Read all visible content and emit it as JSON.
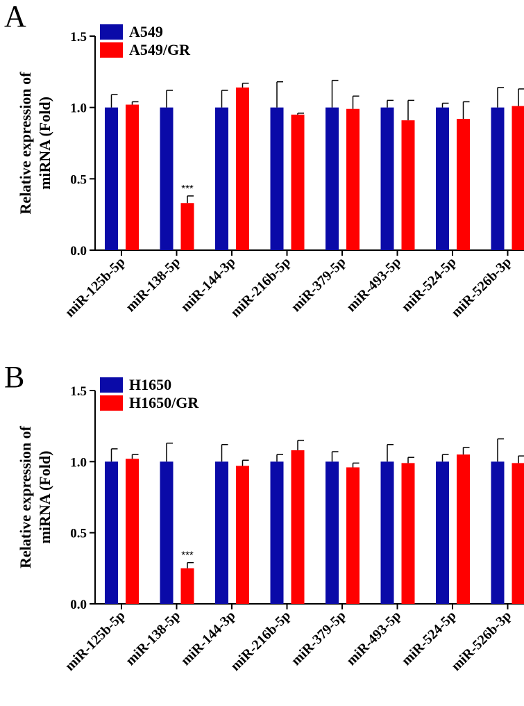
{
  "chart_data": [
    {
      "panel": "A",
      "type": "bar",
      "ylabel_line1": "Relative expression of",
      "ylabel_line2": "miRNA (Fold)",
      "ylim": [
        0,
        1.5
      ],
      "yticks": [
        "0.0",
        "0.5",
        "1.0",
        "1.5"
      ],
      "categories": [
        "miR-125b-5p",
        "miR-138-5p",
        "miR-144-3p",
        "miR-216b-5p",
        "miR-379-5p",
        "miR-493-5p",
        "miR-524-5p",
        "miR-526b-3p"
      ],
      "series": [
        {
          "name": "A549",
          "color": "#0a0aa8",
          "values": [
            1.0,
            1.0,
            1.0,
            1.0,
            1.0,
            1.0,
            1.0,
            1.0
          ],
          "errors": [
            0.09,
            0.12,
            0.12,
            0.18,
            0.19,
            0.05,
            0.03,
            0.14
          ]
        },
        {
          "name": "A549/GR",
          "color": "#ff0000",
          "values": [
            1.02,
            0.33,
            1.14,
            0.95,
            0.99,
            0.91,
            0.92,
            1.01
          ],
          "errors": [
            0.02,
            0.05,
            0.03,
            0.01,
            0.09,
            0.14,
            0.12,
            0.12
          ]
        }
      ],
      "annotations": [
        {
          "category": "miR-138-5p",
          "series": "A549/GR",
          "text": "***"
        }
      ]
    },
    {
      "panel": "B",
      "type": "bar",
      "ylabel_line1": "Relative expression of",
      "ylabel_line2": "miRNA (Fold)",
      "ylim": [
        0,
        1.5
      ],
      "yticks": [
        "0.0",
        "0.5",
        "1.0",
        "1.5"
      ],
      "categories": [
        "miR-125b-5p",
        "miR-138-5p",
        "miR-144-3p",
        "miR-216b-5p",
        "miR-379-5p",
        "miR-493-5p",
        "miR-524-5p",
        "miR-526b-3p"
      ],
      "series": [
        {
          "name": "H1650",
          "color": "#0a0aa8",
          "values": [
            1.0,
            1.0,
            1.0,
            1.0,
            1.0,
            1.0,
            1.0,
            1.0
          ],
          "errors": [
            0.09,
            0.13,
            0.12,
            0.05,
            0.07,
            0.12,
            0.05,
            0.16
          ]
        },
        {
          "name": "H1650/GR",
          "color": "#ff0000",
          "values": [
            1.02,
            0.25,
            0.97,
            1.08,
            0.96,
            0.99,
            1.05,
            0.99
          ],
          "errors": [
            0.03,
            0.04,
            0.04,
            0.07,
            0.03,
            0.04,
            0.05,
            0.05
          ]
        }
      ],
      "annotations": [
        {
          "category": "miR-138-5p",
          "series": "H1650/GR",
          "text": "***"
        }
      ]
    }
  ]
}
